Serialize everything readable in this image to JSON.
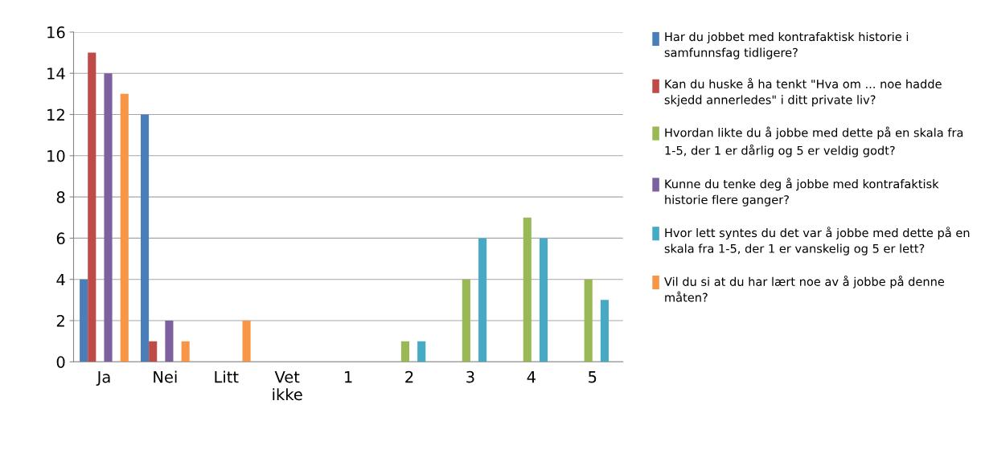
{
  "chart_data": {
    "type": "bar",
    "categories": [
      "Ja",
      "Nei",
      "Litt",
      "Vet ikke",
      "1",
      "2",
      "3",
      "4",
      "5"
    ],
    "series": [
      {
        "name": "Har du jobbet med kontrafaktisk historie i samfunnsfag tidligere?",
        "color": "#4a7ebb",
        "values": [
          4,
          12,
          0,
          0,
          0,
          0,
          0,
          0,
          0
        ]
      },
      {
        "name": "Kan du huske å ha tenkt \"Hva om ... noe hadde skjedd annerledes\" i ditt private liv?",
        "color": "#be4b48",
        "values": [
          15,
          1,
          0,
          0,
          0,
          0,
          0,
          0,
          0
        ]
      },
      {
        "name": "Hvordan likte du å jobbe med dette på en skala fra 1-5, der 1 er dårlig og 5 er veldig godt?",
        "color": "#98b954",
        "values": [
          0,
          0,
          0,
          0,
          0,
          1,
          4,
          7,
          4
        ]
      },
      {
        "name": "Kunne du tenke deg å jobbe med kontrafaktisk historie flere ganger?",
        "color": "#7d60a0",
        "values": [
          14,
          2,
          0,
          0,
          0,
          0,
          0,
          0,
          0
        ]
      },
      {
        "name": "Hvor lett syntes du det var å jobbe med dette på en skala fra 1-5, der 1 er vanskelig og 5 er lett?",
        "color": "#46aac5",
        "values": [
          0,
          0,
          0,
          0,
          0,
          1,
          6,
          6,
          3
        ]
      },
      {
        "name": "Vil du si at du har lært noe av å jobbe på denne måten?",
        "color": "#f79646",
        "values": [
          13,
          1,
          2,
          0,
          0,
          0,
          0,
          0,
          0
        ]
      }
    ],
    "ylim": [
      0,
      16
    ],
    "yticks": [
      0,
      2,
      4,
      6,
      8,
      10,
      12,
      14,
      16
    ],
    "grid": "y",
    "legend": "right"
  }
}
